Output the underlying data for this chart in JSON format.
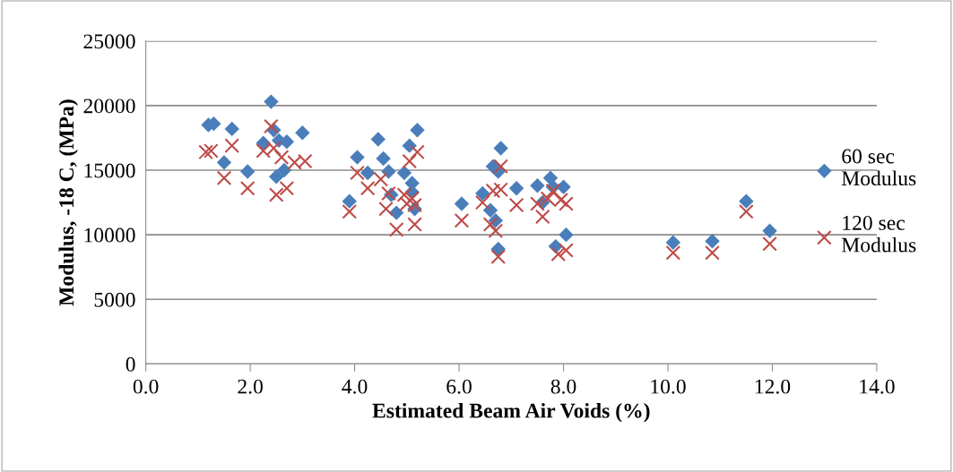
{
  "chart_data": {
    "type": "scatter",
    "xlabel": "Estimated Beam Air Voids (%)",
    "ylabel": "Modulus, -18 C, (MPa)",
    "xlim": [
      0,
      14
    ],
    "xticks": [
      {
        "value": 0,
        "label": "0.0"
      },
      {
        "value": 2,
        "label": "2.0"
      },
      {
        "value": 4,
        "label": "4.0"
      },
      {
        "value": 6,
        "label": "6.0"
      },
      {
        "value": 8,
        "label": "8.0"
      },
      {
        "value": 10,
        "label": "10.0"
      },
      {
        "value": 12,
        "label": "12.0"
      },
      {
        "value": 14,
        "label": "14.0"
      }
    ],
    "ylim": [
      0,
      25000
    ],
    "yticks": [
      0,
      5000,
      10000,
      15000,
      20000,
      25000
    ],
    "grid": "y",
    "legend": "right",
    "series": [
      {
        "name": "60 sec\nModulus",
        "color": "#4a7ebb",
        "marker": "diamond",
        "x": [
          1.2,
          1.3,
          1.5,
          1.65,
          1.95,
          2.25,
          2.4,
          2.45,
          2.5,
          2.55,
          2.65,
          2.7,
          3.0,
          3.9,
          4.05,
          4.25,
          4.45,
          4.55,
          4.65,
          4.7,
          4.8,
          4.95,
          5.0,
          5.05,
          5.1,
          5.1,
          5.15,
          5.2,
          6.05,
          6.45,
          6.6,
          6.65,
          6.7,
          6.75,
          6.8,
          6.75,
          7.1,
          7.5,
          7.6,
          7.75,
          7.8,
          7.85,
          7.95,
          8.0,
          8.05,
          10.1,
          10.85,
          11.5,
          11.95
        ],
        "values": [
          18500,
          18600,
          15600,
          18200,
          14900,
          17100,
          20300,
          18100,
          14500,
          17300,
          15000,
          17200,
          17900,
          12600,
          16000,
          14800,
          17400,
          15900,
          14900,
          13100,
          11700,
          14800,
          null,
          16900,
          14000,
          13300,
          12000,
          18100,
          12400,
          13200,
          11900,
          15300,
          11100,
          8900,
          16700,
          14900,
          13600,
          13800,
          12500,
          14400,
          13700,
          9100,
          null,
          13700,
          10000,
          9400,
          9500,
          12600,
          10300
        ]
      },
      {
        "name": "120 sec\nModulus",
        "color": "#be4b48",
        "marker": "cross",
        "x": [
          1.15,
          1.25,
          1.5,
          1.65,
          1.95,
          2.25,
          2.4,
          2.45,
          2.5,
          2.6,
          2.7,
          2.85,
          3.05,
          3.9,
          4.05,
          4.25,
          4.5,
          4.6,
          4.65,
          4.8,
          4.95,
          5.0,
          5.05,
          5.1,
          5.15,
          5.15,
          5.2,
          6.05,
          6.45,
          6.6,
          6.65,
          6.7,
          6.75,
          6.8,
          6.8,
          7.1,
          7.5,
          7.6,
          7.7,
          7.8,
          7.9,
          7.95,
          8.05,
          8.05,
          10.1,
          10.85,
          11.5,
          11.95
        ],
        "values": [
          16400,
          16500,
          14400,
          16900,
          13600,
          16500,
          18400,
          16700,
          13100,
          16000,
          13600,
          15600,
          15700,
          11800,
          14800,
          13600,
          14300,
          12000,
          13200,
          10400,
          13100,
          12400,
          15700,
          12800,
          10800,
          12300,
          16400,
          11100,
          12500,
          10800,
          13400,
          10300,
          8300,
          15300,
          13500,
          12300,
          12400,
          11400,
          12800,
          13400,
          8500,
          12700,
          12400,
          8800,
          8600,
          8600,
          11800,
          9300
        ]
      }
    ]
  }
}
